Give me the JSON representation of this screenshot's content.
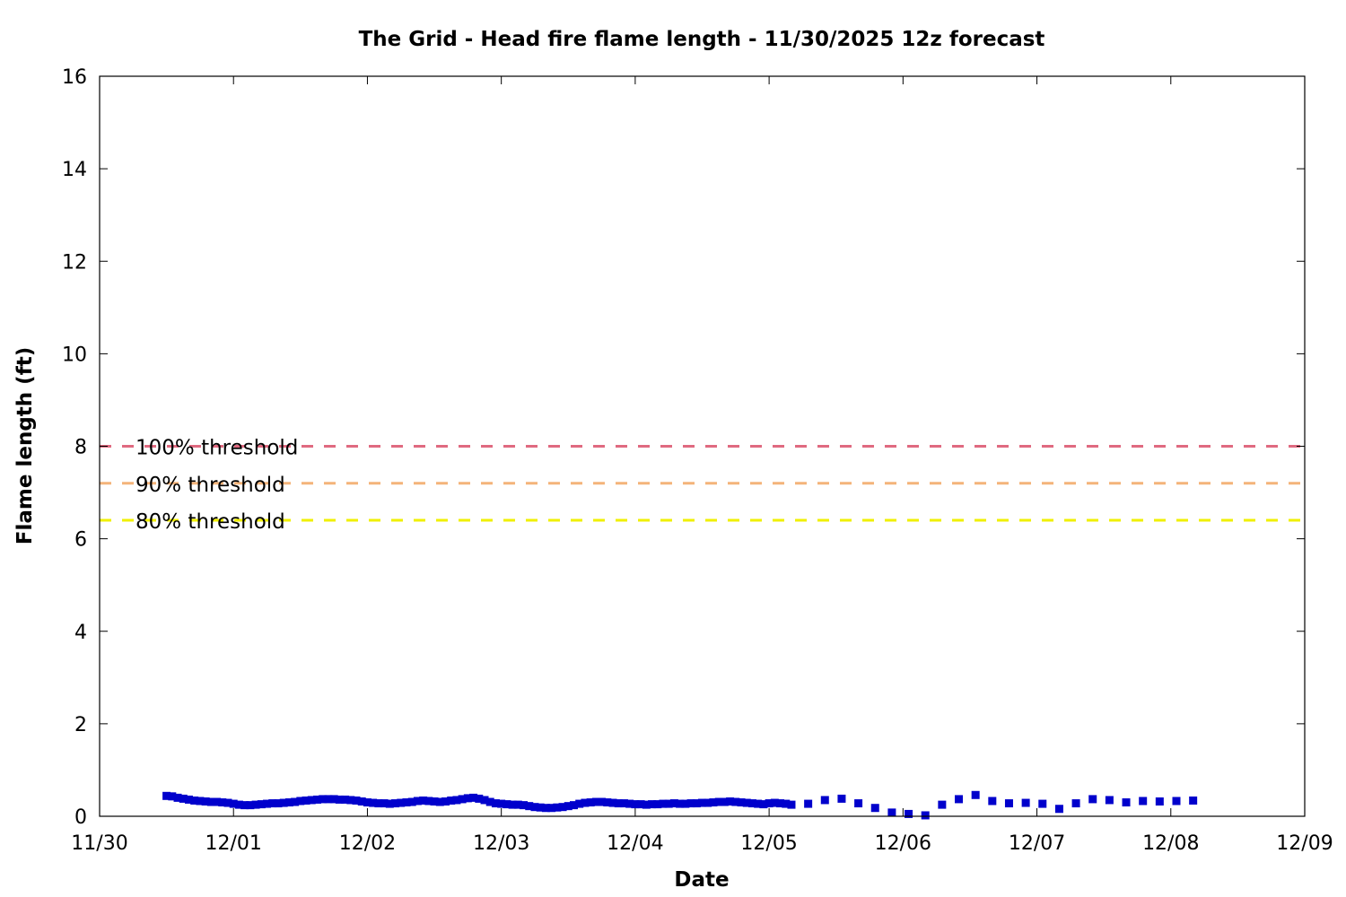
{
  "chart_data": {
    "type": "scatter",
    "title": "The Grid - Head fire flame length - 11/30/2025 12z forecast",
    "xlabel": "Date",
    "ylabel": "Flame length (ft)",
    "xlim": [
      "11/30",
      "12/09"
    ],
    "ylim": [
      0,
      16
    ],
    "x_ticks": [
      "11/30",
      "12/01",
      "12/02",
      "12/03",
      "12/04",
      "12/05",
      "12/06",
      "12/07",
      "12/08",
      "12/09"
    ],
    "y_ticks": [
      "0",
      "2",
      "4",
      "6",
      "8",
      "10",
      "12",
      "14",
      "16"
    ],
    "grid": false,
    "legend_position": "left",
    "thresholds": [
      {
        "name": "100% threshold",
        "value": 8.0,
        "color": "#e06a80"
      },
      {
        "name": "90% threshold",
        "value": 7.2,
        "color": "#f4b47a"
      },
      {
        "name": "80% threshold",
        "value": 6.4,
        "color": "#f0f000"
      }
    ],
    "series": [
      {
        "color": "#0000cc",
        "x": [
          "11/30 12:00",
          "11/30 13:00",
          "11/30 14:00",
          "11/30 15:00",
          "11/30 16:00",
          "11/30 17:00",
          "11/30 18:00",
          "11/30 19:00",
          "11/30 20:00",
          "11/30 21:00",
          "11/30 22:00",
          "11/30 23:00",
          "12/01 00:00",
          "12/01 01:00",
          "12/01 02:00",
          "12/01 03:00",
          "12/01 04:00",
          "12/01 05:00",
          "12/01 06:00",
          "12/01 07:00",
          "12/01 08:00",
          "12/01 09:00",
          "12/01 10:00",
          "12/01 11:00",
          "12/01 12:00",
          "12/01 13:00",
          "12/01 14:00",
          "12/01 15:00",
          "12/01 16:00",
          "12/01 17:00",
          "12/01 18:00",
          "12/01 19:00",
          "12/01 20:00",
          "12/01 21:00",
          "12/01 22:00",
          "12/01 23:00",
          "12/02 00:00",
          "12/02 01:00",
          "12/02 02:00",
          "12/02 03:00",
          "12/02 04:00",
          "12/02 05:00",
          "12/02 06:00",
          "12/02 07:00",
          "12/02 08:00",
          "12/02 09:00",
          "12/02 10:00",
          "12/02 11:00",
          "12/02 12:00",
          "12/02 13:00",
          "12/02 14:00",
          "12/02 15:00",
          "12/02 16:00",
          "12/02 17:00",
          "12/02 18:00",
          "12/02 19:00",
          "12/02 20:00",
          "12/02 21:00",
          "12/02 22:00",
          "12/02 23:00",
          "12/03 00:00",
          "12/03 01:00",
          "12/03 02:00",
          "12/03 03:00",
          "12/03 04:00",
          "12/03 05:00",
          "12/03 06:00",
          "12/03 07:00",
          "12/03 08:00",
          "12/03 09:00",
          "12/03 10:00",
          "12/03 11:00",
          "12/03 12:00",
          "12/03 13:00",
          "12/03 14:00",
          "12/03 15:00",
          "12/03 16:00",
          "12/03 17:00",
          "12/03 18:00",
          "12/03 19:00",
          "12/03 20:00",
          "12/03 21:00",
          "12/03 22:00",
          "12/03 23:00",
          "12/04 00:00",
          "12/04 01:00",
          "12/04 02:00",
          "12/04 03:00",
          "12/04 04:00",
          "12/04 05:00",
          "12/04 06:00",
          "12/04 07:00",
          "12/04 08:00",
          "12/04 09:00",
          "12/04 10:00",
          "12/04 11:00",
          "12/04 12:00",
          "12/04 13:00",
          "12/04 14:00",
          "12/04 15:00",
          "12/04 16:00",
          "12/04 17:00",
          "12/04 18:00",
          "12/04 19:00",
          "12/04 20:00",
          "12/04 21:00",
          "12/04 22:00",
          "12/04 23:00",
          "12/05 00:00",
          "12/05 01:00",
          "12/05 02:00",
          "12/05 03:00",
          "12/05 04:00",
          "12/05 07:00",
          "12/05 10:00",
          "12/05 13:00",
          "12/05 16:00",
          "12/05 19:00",
          "12/05 22:00",
          "12/06 01:00",
          "12/06 04:00",
          "12/06 07:00",
          "12/06 10:00",
          "12/06 13:00",
          "12/06 16:00",
          "12/06 19:00",
          "12/06 22:00",
          "12/07 01:00",
          "12/07 04:00",
          "12/07 07:00",
          "12/07 10:00",
          "12/07 13:00",
          "12/07 16:00",
          "12/07 19:00",
          "12/07 22:00",
          "12/08 01:00",
          "12/08 04:00"
        ],
        "y": [
          0.44,
          0.43,
          0.4,
          0.38,
          0.36,
          0.34,
          0.33,
          0.32,
          0.31,
          0.31,
          0.3,
          0.29,
          0.27,
          0.25,
          0.24,
          0.24,
          0.25,
          0.26,
          0.27,
          0.28,
          0.28,
          0.29,
          0.3,
          0.31,
          0.33,
          0.34,
          0.35,
          0.36,
          0.37,
          0.37,
          0.37,
          0.36,
          0.36,
          0.35,
          0.34,
          0.32,
          0.3,
          0.29,
          0.28,
          0.28,
          0.27,
          0.28,
          0.29,
          0.3,
          0.31,
          0.33,
          0.34,
          0.33,
          0.32,
          0.31,
          0.32,
          0.34,
          0.35,
          0.37,
          0.39,
          0.4,
          0.38,
          0.35,
          0.31,
          0.28,
          0.27,
          0.26,
          0.25,
          0.25,
          0.24,
          0.22,
          0.2,
          0.19,
          0.18,
          0.18,
          0.19,
          0.2,
          0.22,
          0.24,
          0.27,
          0.29,
          0.3,
          0.31,
          0.31,
          0.3,
          0.29,
          0.28,
          0.28,
          0.27,
          0.26,
          0.26,
          0.25,
          0.26,
          0.26,
          0.27,
          0.27,
          0.28,
          0.27,
          0.27,
          0.28,
          0.28,
          0.29,
          0.29,
          0.3,
          0.31,
          0.31,
          0.32,
          0.31,
          0.3,
          0.29,
          0.28,
          0.27,
          0.26,
          0.28,
          0.29,
          0.28,
          0.27,
          0.25,
          0.27,
          0.35,
          0.38,
          0.28,
          0.18,
          0.08,
          0.05,
          0.02,
          0.25,
          0.37,
          0.46,
          0.33,
          0.28,
          0.29,
          0.27,
          0.16,
          0.28,
          0.37,
          0.35,
          0.3,
          0.33,
          0.32,
          0.33,
          0.34
        ]
      }
    ]
  }
}
